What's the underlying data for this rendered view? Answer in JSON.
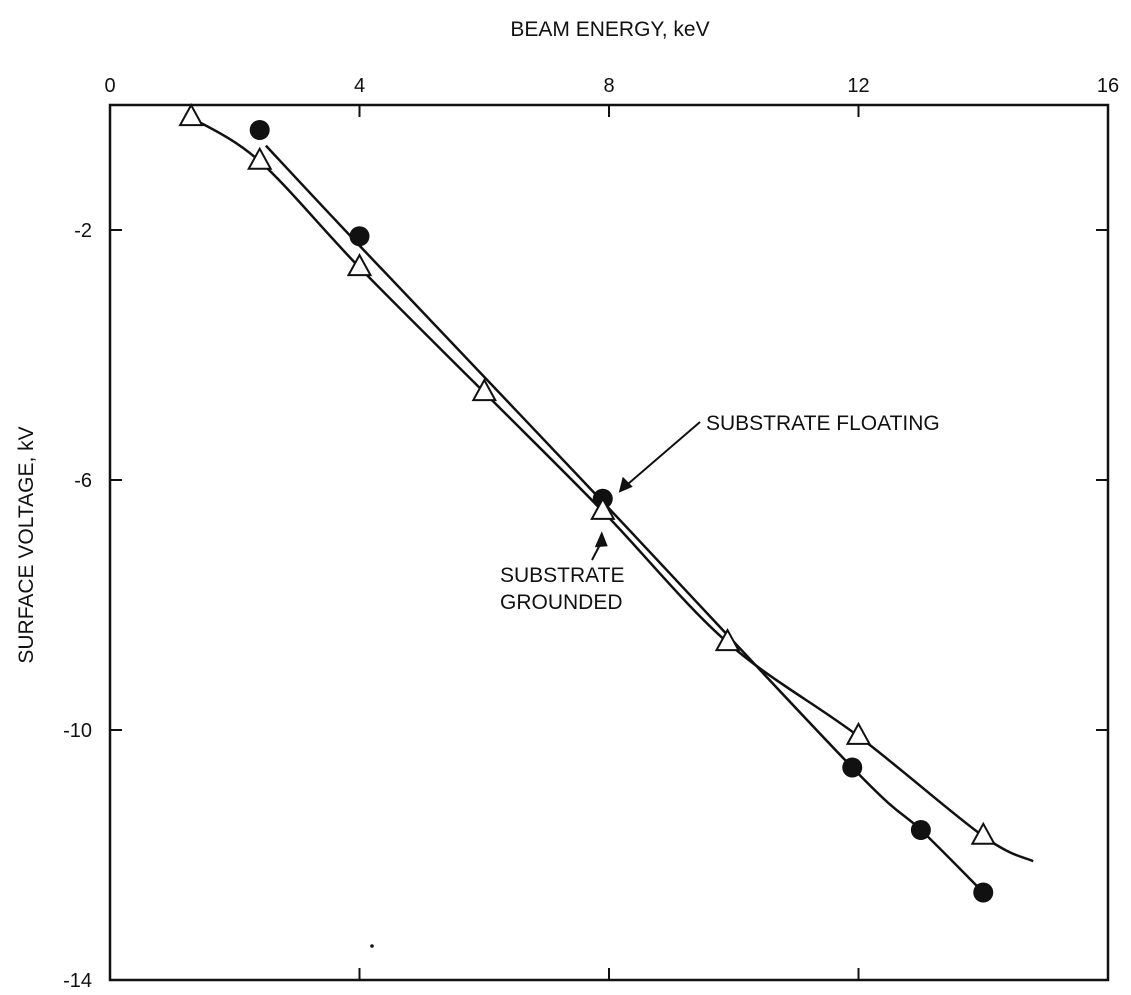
{
  "chart_data": {
    "type": "line",
    "xlabel": "BEAM ENERGY, keV",
    "ylabel": "SURFACE VOLTAGE, kV",
    "xlim": [
      0,
      16
    ],
    "ylim": [
      -14,
      0
    ],
    "x_ticks": [
      0,
      4,
      8,
      12,
      16
    ],
    "y_ticks": [
      -2,
      -6,
      -10,
      -14
    ],
    "x_tick_labels": [
      "0",
      "4",
      "8",
      "12",
      "16"
    ],
    "y_tick_labels": [
      "-2",
      "-6",
      "-10",
      "-14"
    ],
    "x_axis_position": "top",
    "grid": false,
    "series": [
      {
        "name": "SUBSTRATE FLOATING",
        "marker": "filled-circle",
        "color": "#111111",
        "x": [
          2.4,
          4.0,
          7.9,
          11.9,
          13.0,
          14.0
        ],
        "y": [
          -0.4,
          -2.1,
          -6.3,
          -10.6,
          -11.6,
          -12.6
        ],
        "curve_x": [
          2.5,
          4.0,
          7.9,
          11.9,
          13.0,
          14.0
        ],
        "curve_y": [
          -0.65,
          -2.25,
          -6.35,
          -10.6,
          -11.6,
          -12.6
        ]
      },
      {
        "name": "SUBSTRATE GROUNDED",
        "marker": "open-triangle",
        "color": "#111111",
        "x": [
          1.3,
          2.4,
          4.0,
          6.0,
          7.9,
          9.9,
          12.0,
          14.0
        ],
        "y": [
          -0.2,
          -0.9,
          -2.6,
          -4.6,
          -6.5,
          -8.6,
          -10.1,
          -11.7
        ],
        "curve_x": [
          1.3,
          2.4,
          4.0,
          6.0,
          7.9,
          9.9,
          12.0,
          14.0,
          14.8
        ],
        "curve_y": [
          -0.2,
          -0.9,
          -2.6,
          -4.6,
          -6.5,
          -8.6,
          -10.1,
          -11.7,
          -12.1
        ]
      }
    ],
    "annotations": [
      {
        "text": [
          "SUBSTRATE FLOATING"
        ],
        "points_to": [
          7.9,
          -6.3
        ],
        "placement": "upper-right"
      },
      {
        "text": [
          "SUBSTRATE",
          "GROUNDED"
        ],
        "points_to": [
          7.9,
          -6.5
        ],
        "placement": "below"
      }
    ]
  }
}
